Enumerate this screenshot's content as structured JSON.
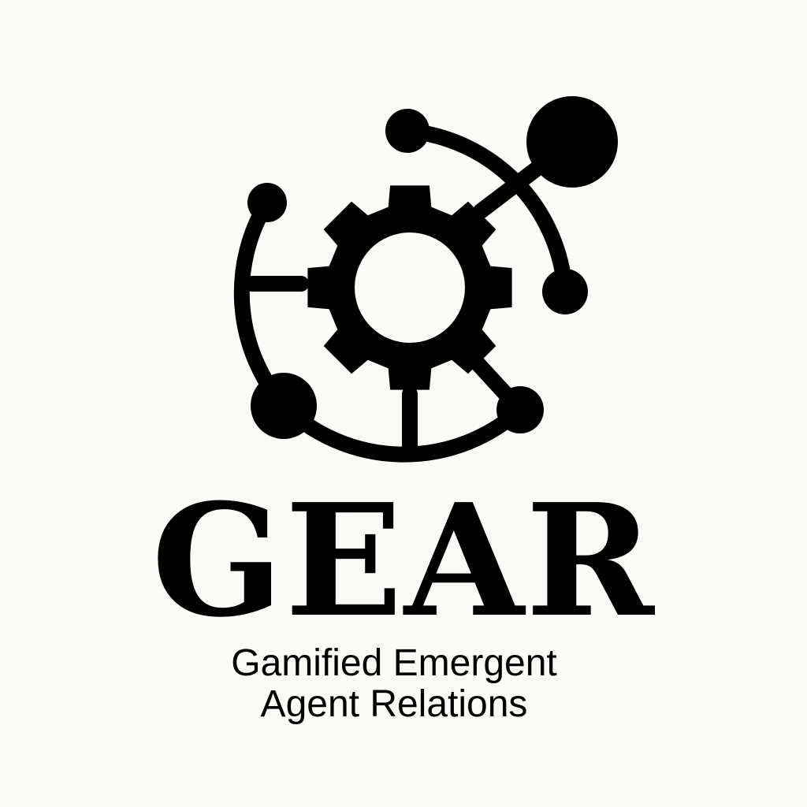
{
  "brand": {
    "name": "GEAR",
    "tagline_line1": "Gamified Emergent",
    "tagline_line2": "Agent Relations"
  },
  "colors": {
    "background": "#fbfaf6",
    "ink": "#000000"
  },
  "icons": {
    "logo": "gear-network-icon"
  }
}
